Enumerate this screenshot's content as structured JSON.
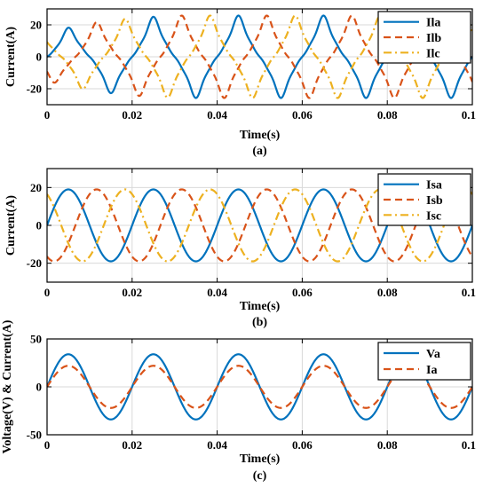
{
  "chart_data": [
    {
      "id": "a",
      "type": "line",
      "xlabel": "Time(s)",
      "ylabel": "Current(A)",
      "caption": "(a)",
      "xlim": [
        0,
        0.1
      ],
      "ylim": [
        -30,
        30
      ],
      "xticks": [
        0,
        0.02,
        0.04,
        0.06,
        0.08,
        0.1
      ],
      "xtick_labels": [
        "0",
        "0.02",
        "0.04",
        "0.06",
        "0.08",
        "0.1"
      ],
      "yticks": [
        -20,
        0,
        20
      ],
      "ytick_labels": [
        "-20",
        "0",
        "20"
      ],
      "grid": true,
      "legend_position": "top-right",
      "series": [
        {
          "name": "Ila",
          "color": "#0072BD",
          "style": "solid",
          "shape": "distorted-sine",
          "amplitude": 17,
          "frequency_hz": 50,
          "phase_deg": 0,
          "envelope": [
            [
              0,
              10
            ],
            [
              0.01,
              14
            ],
            [
              0.02,
              16
            ],
            [
              0.03,
              17
            ],
            [
              0.1,
              17
            ]
          ]
        },
        {
          "name": "Ilb",
          "color": "#D95319",
          "style": "dashed",
          "shape": "distorted-sine",
          "amplitude": 17,
          "frequency_hz": 50,
          "phase_deg": -120,
          "envelope": [
            [
              0,
              10
            ],
            [
              0.01,
              14
            ],
            [
              0.02,
              16
            ],
            [
              0.03,
              17
            ],
            [
              0.1,
              17
            ]
          ]
        },
        {
          "name": "Ilc",
          "color": "#EDB120",
          "style": "dashdot",
          "shape": "distorted-sine",
          "amplitude": 17,
          "frequency_hz": 50,
          "phase_deg": 120,
          "envelope": [
            [
              0,
              10
            ],
            [
              0.01,
              14
            ],
            [
              0.02,
              16
            ],
            [
              0.03,
              17
            ],
            [
              0.1,
              17
            ]
          ]
        }
      ]
    },
    {
      "id": "b",
      "type": "line",
      "xlabel": "Time(s)",
      "ylabel": "Current(A)",
      "caption": "(b)",
      "xlim": [
        0,
        0.1
      ],
      "ylim": [
        -30,
        30
      ],
      "xticks": [
        0,
        0.02,
        0.04,
        0.06,
        0.08,
        0.1
      ],
      "xtick_labels": [
        "0",
        "0.02",
        "0.04",
        "0.06",
        "0.08",
        "0.1"
      ],
      "yticks": [
        -20,
        0,
        20
      ],
      "ytick_labels": [
        "-20",
        "0",
        "20"
      ],
      "grid": true,
      "legend_position": "top-right",
      "series": [
        {
          "name": "Isa",
          "color": "#0072BD",
          "style": "solid",
          "shape": "sine",
          "amplitude": 19,
          "frequency_hz": 50,
          "phase_deg": 0
        },
        {
          "name": "Isb",
          "color": "#D95319",
          "style": "dashed",
          "shape": "sine",
          "amplitude": 19,
          "frequency_hz": 50,
          "phase_deg": -120
        },
        {
          "name": "Isc",
          "color": "#EDB120",
          "style": "dashdot",
          "shape": "sine",
          "amplitude": 19,
          "frequency_hz": 50,
          "phase_deg": 120
        }
      ]
    },
    {
      "id": "c",
      "type": "line",
      "xlabel": "Time(s)",
      "ylabel": "Voltage(V) & Current(A)",
      "caption": "(c)",
      "xlim": [
        0,
        0.1
      ],
      "ylim": [
        -50,
        50
      ],
      "xticks": [
        0,
        0.02,
        0.04,
        0.06,
        0.08,
        0.1
      ],
      "xtick_labels": [
        "0",
        "0.02",
        "0.04",
        "0.06",
        "0.08",
        "0.1"
      ],
      "yticks": [
        -50,
        0,
        50
      ],
      "ytick_labels": [
        "-50",
        "0",
        "50"
      ],
      "grid": true,
      "legend_position": "top-right",
      "series": [
        {
          "name": "Va",
          "color": "#0072BD",
          "style": "solid",
          "shape": "sine",
          "amplitude": 34,
          "frequency_hz": 50,
          "phase_deg": 0
        },
        {
          "name": "Ia",
          "color": "#D95319",
          "style": "dashed",
          "shape": "sine",
          "amplitude": 22,
          "frequency_hz": 50,
          "phase_deg": 0
        }
      ]
    }
  ]
}
